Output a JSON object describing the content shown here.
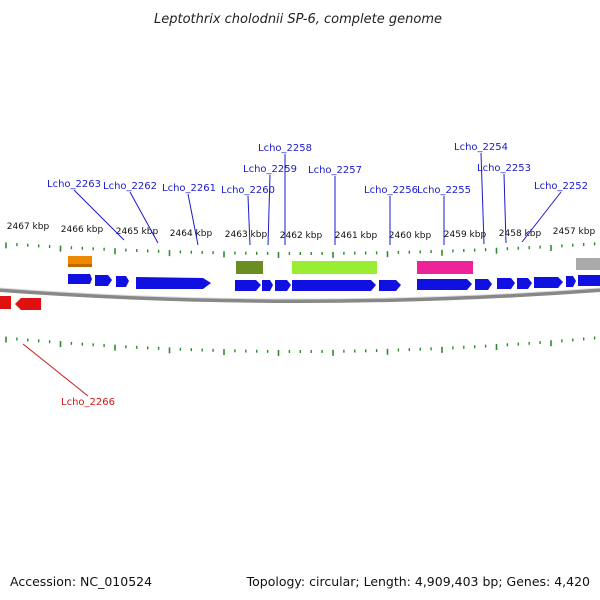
{
  "title": "Leptothrix cholodnii SP-6, complete genome",
  "accession": "Accession: NC_010524",
  "summary": "Topology: circular; Length: 4,909,403 bp; Genes: 4,420",
  "colors": {
    "backbone": "#999999",
    "tick": "#2e8b2e",
    "forward_gene": "#1010e0",
    "reverse_gene": "#e01010",
    "label_blue": "#1a1acc",
    "label_red": "#cc1a1a",
    "feature_orange": "#ee8800",
    "feature_olive": "#6b8e23",
    "feature_lime": "#99ee33",
    "feature_magenta": "#ee2299",
    "feature_grey": "#aaaaaa"
  },
  "kbp_ticks": [
    "2467 kbp",
    "2466 kbp",
    "2465 kbp",
    "2464 kbp",
    "2463 kbp",
    "2462 kbp",
    "2461 kbp",
    "2460 kbp",
    "2459 kbp",
    "2458 kbp",
    "2457 kbp"
  ],
  "gene_labels": [
    "Lcho_2263",
    "Lcho_2262",
    "Lcho_2261",
    "Lcho_2260",
    "Lcho_2259",
    "Lcho_2258",
    "Lcho_2257",
    "Lcho_2256",
    "Lcho_2255",
    "Lcho_2254",
    "Lcho_2253",
    "Lcho_2252"
  ],
  "reverse_gene_labels": [
    "Lcho_2266"
  ]
}
